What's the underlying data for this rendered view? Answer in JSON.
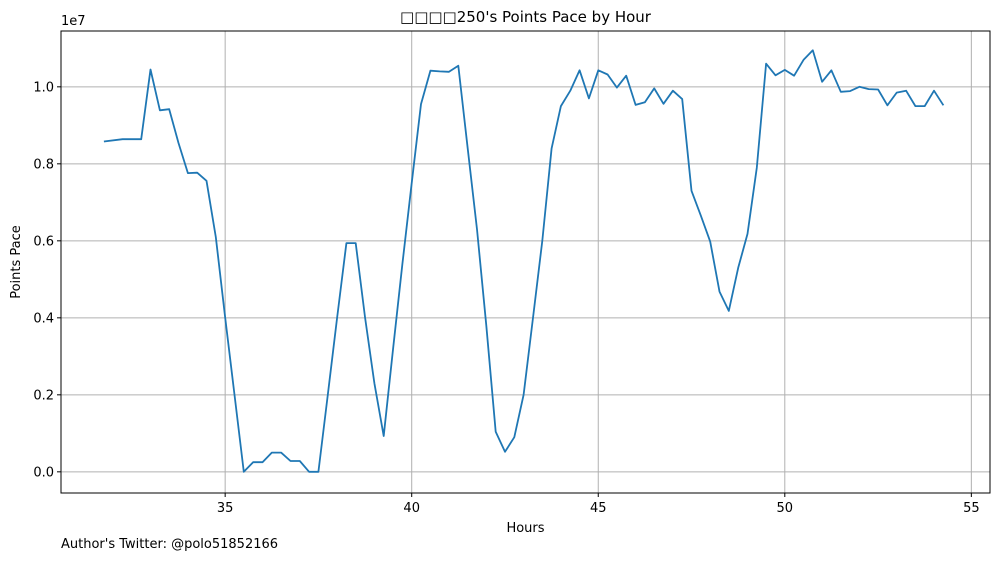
{
  "chart_data": {
    "type": "line",
    "title": "□□□□250's Points Pace by Hour",
    "xlabel": "Hours",
    "ylabel": "Points Pace",
    "y_scale_label": "1e7",
    "xlim": [
      30.6,
      55.5
    ],
    "ylim": [
      -0.055,
      1.145
    ],
    "x_ticks": [
      35,
      40,
      45,
      50,
      55
    ],
    "x_tick_labels": [
      "35",
      "40",
      "45",
      "50",
      "55"
    ],
    "y_ticks": [
      0.0,
      0.2,
      0.4,
      0.6,
      0.8,
      1.0
    ],
    "y_tick_labels": [
      "0.0",
      "0.2",
      "0.4",
      "0.6",
      "0.8",
      "1.0"
    ],
    "grid": true,
    "line_color": "#1f77b4",
    "series": [
      {
        "x": [
          31.75,
          32.25,
          32.5,
          32.75,
          33.0,
          33.25,
          33.5,
          33.75,
          34.0,
          34.25,
          34.5,
          34.75,
          35.0,
          35.25,
          35.5,
          35.75,
          36.0,
          36.25,
          36.5,
          36.75,
          37.0,
          37.25,
          37.5,
          37.75,
          38.0,
          38.25,
          38.5,
          38.75,
          39.0,
          39.25,
          39.5,
          39.75,
          40.0,
          40.25,
          40.5,
          40.75,
          41.0,
          41.25,
          41.5,
          41.75,
          42.0,
          42.25,
          42.5,
          42.75,
          43.0,
          43.25,
          43.5,
          43.75,
          44.0,
          44.25,
          44.5,
          44.75,
          45.0,
          45.25,
          45.5,
          45.75,
          46.0,
          46.25,
          46.5,
          46.75,
          47.0,
          47.25,
          47.5,
          47.75,
          48.0,
          48.25,
          48.5,
          48.75,
          49.0,
          49.25,
          49.5,
          49.75,
          50.0,
          50.25,
          50.5,
          50.75,
          51.0,
          51.25,
          51.5,
          51.75,
          52.0,
          52.25,
          52.5,
          52.75,
          53.0,
          53.25,
          53.5,
          53.75,
          54.0,
          54.25
        ],
        "y": [
          0.858,
          0.864,
          0.864,
          0.864,
          1.045,
          0.939,
          0.942,
          0.854,
          0.776,
          0.777,
          0.756,
          0.61,
          0.4,
          0.2,
          0.0,
          0.025,
          0.025,
          0.05,
          0.05,
          0.028,
          0.028,
          0.0,
          0.0,
          0.2,
          0.4,
          0.594,
          0.594,
          0.4,
          0.23,
          0.093,
          0.32,
          0.54,
          0.75,
          0.955,
          1.042,
          1.04,
          1.039,
          1.055,
          0.84,
          0.63,
          0.38,
          0.104,
          0.052,
          0.09,
          0.2,
          0.4,
          0.6,
          0.84,
          0.95,
          0.99,
          1.043,
          0.97,
          1.043,
          1.032,
          0.998,
          1.029,
          0.953,
          0.96,
          0.996,
          0.956,
          0.99,
          0.968,
          0.73,
          0.665,
          0.598,
          0.468,
          0.418,
          0.53,
          0.618,
          0.79,
          1.06,
          1.03,
          1.044,
          1.029,
          1.07,
          1.095,
          1.013,
          1.043,
          0.987,
          0.989,
          1.0,
          0.994,
          0.993,
          0.952,
          0.985,
          0.99,
          0.95,
          0.95,
          0.99,
          0.952
        ]
      }
    ]
  },
  "footer": {
    "author": "Author's Twitter: @polo51852166"
  }
}
